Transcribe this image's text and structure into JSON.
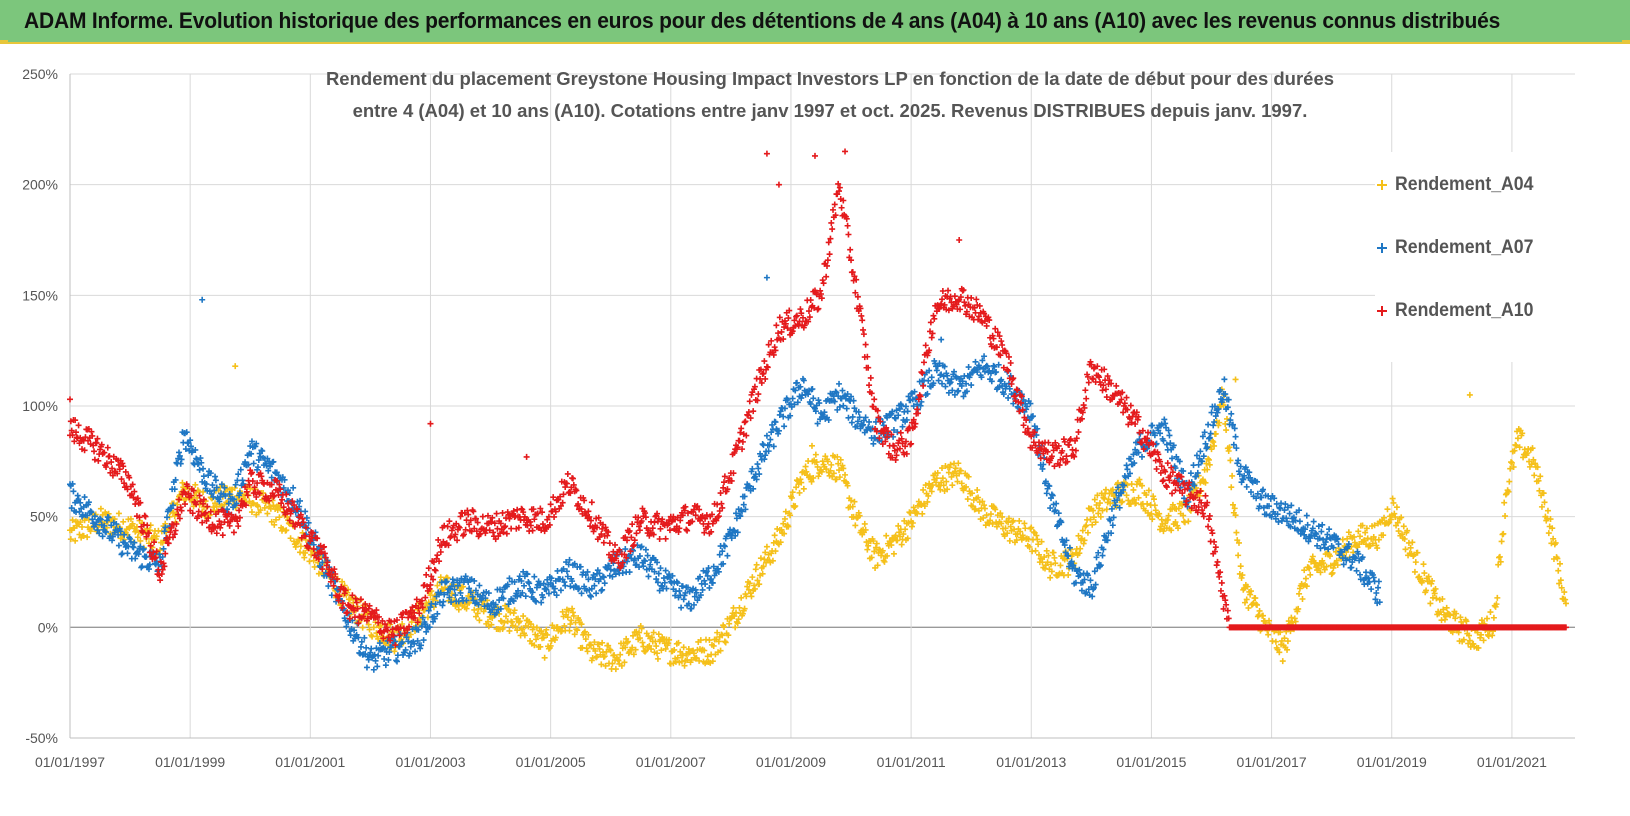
{
  "banner": {
    "title": "ADAM Informe. Evolution historique des performances en euros pour des détentions de 4 ans (A04) à 10 ans (A10) avec les revenus connus distribués"
  },
  "colors": {
    "banner_bg": "#7cc67c",
    "accent": "#e7c63a",
    "a04": "#f5c01a",
    "a07": "#1f77c4",
    "a10": "#e41a1c",
    "grid": "#d9d9d9",
    "zero_line": "#9a9a9a",
    "text": "#555555"
  },
  "chart_data": {
    "type": "scatter",
    "title_line1": "Rendement du placement Greystone Housing Impact Investors LP en fonction de la date de début pour des durées",
    "title_line2": "entre 4 (A04) et 10 ans (A10). Cotations entre janv 1997 et oct. 2025. Revenus DISTRIBUES depuis janv. 1997.",
    "xlabel": "",
    "ylabel": "",
    "x_range": [
      1997.0,
      2022.05
    ],
    "ylim": [
      -50,
      250
    ],
    "y_ticks": [
      -50,
      0,
      50,
      100,
      150,
      200,
      250
    ],
    "y_tick_labels": [
      "-50%",
      "0%",
      "50%",
      "100%",
      "150%",
      "200%",
      "250%"
    ],
    "x_ticks": [
      1997,
      1999,
      2001,
      2003,
      2005,
      2007,
      2009,
      2011,
      2013,
      2015,
      2017,
      2019,
      2021
    ],
    "x_tick_labels": [
      "01/01/1997",
      "01/01/1999",
      "01/01/2001",
      "01/01/2003",
      "01/01/2005",
      "01/01/2007",
      "01/01/2009",
      "01/01/2011",
      "01/01/2013",
      "01/01/2015",
      "01/01/2017",
      "01/01/2019",
      "01/01/2021"
    ],
    "grid": true,
    "legend_position": "top-right",
    "series": [
      {
        "name": "Rendement_A04",
        "color": "#f5c01a",
        "x": [
          1997.0,
          1997.5,
          1998.0,
          1998.5,
          1998.9,
          1999.3,
          1999.7,
          2000.0,
          2000.4,
          2000.8,
          2001.2,
          2001.6,
          2002.0,
          2002.4,
          2002.8,
          2003.2,
          2003.6,
          2004.0,
          2004.5,
          2004.9,
          2005.3,
          2005.7,
          2006.1,
          2006.5,
          2006.9,
          2007.3,
          2007.7,
          2008.0,
          2008.4,
          2008.8,
          2009.2,
          2009.5,
          2009.8,
          2010.1,
          2010.4,
          2010.7,
          2011.0,
          2011.4,
          2011.8,
          2012.2,
          2012.6,
          2013.0,
          2013.3,
          2013.7,
          2014.0,
          2014.4,
          2014.8,
          2015.2,
          2015.6,
          2015.9,
          2016.2,
          2016.5,
          2016.9,
          2017.2,
          2017.6,
          2018.0,
          2018.4,
          2018.8,
          2019.0,
          2019.4,
          2019.8,
          2020.1,
          2020.4,
          2020.7,
          2020.9,
          2021.1,
          2021.35,
          2021.6,
          2021.9
        ],
        "y": [
          42,
          48,
          45,
          38,
          62,
          55,
          60,
          58,
          52,
          40,
          28,
          12,
          2,
          -5,
          5,
          18,
          12,
          6,
          2,
          -8,
          5,
          -12,
          -14,
          -5,
          -10,
          -12,
          -10,
          2,
          22,
          40,
          68,
          75,
          72,
          48,
          32,
          38,
          48,
          66,
          70,
          52,
          45,
          40,
          28,
          30,
          52,
          60,
          62,
          48,
          52,
          70,
          105,
          20,
          0,
          -10,
          25,
          30,
          40,
          42,
          55,
          30,
          8,
          0,
          -5,
          3,
          60,
          85,
          75,
          50,
          10
        ]
      },
      {
        "name": "Rendement_A07",
        "color": "#1f77c4",
        "x": [
          1997.0,
          1997.5,
          1998.0,
          1998.5,
          1998.9,
          1999.3,
          1999.7,
          2000.0,
          2000.4,
          2000.8,
          2001.2,
          2001.6,
          2002.0,
          2002.4,
          2002.8,
          2003.2,
          2003.6,
          2004.0,
          2004.5,
          2004.9,
          2005.3,
          2005.7,
          2006.1,
          2006.5,
          2006.9,
          2007.3,
          2007.7,
          2008.0,
          2008.4,
          2008.8,
          2009.2,
          2009.5,
          2009.8,
          2010.1,
          2010.4,
          2010.7,
          2011.0,
          2011.4,
          2011.8,
          2012.2,
          2012.6,
          2013.0,
          2013.3,
          2013.7,
          2014.0,
          2014.4,
          2014.8,
          2015.2,
          2015.6,
          2015.9,
          2016.2,
          2016.5,
          2016.9,
          2017.2,
          2017.6,
          2018.0,
          2018.4,
          2018.8
        ],
        "y": [
          60,
          48,
          35,
          28,
          88,
          65,
          55,
          80,
          70,
          55,
          30,
          5,
          -15,
          -10,
          -5,
          15,
          18,
          10,
          20,
          15,
          25,
          18,
          28,
          32,
          20,
          12,
          25,
          40,
          70,
          92,
          110,
          95,
          105,
          95,
          88,
          92,
          100,
          115,
          108,
          118,
          110,
          98,
          60,
          25,
          18,
          55,
          82,
          90,
          60,
          85,
          108,
          70,
          55,
          52,
          45,
          38,
          30,
          15
        ]
      },
      {
        "name": "Rendement_A10",
        "color": "#e41a1c",
        "x": [
          1997.0,
          1997.5,
          1998.0,
          1998.5,
          1998.9,
          1999.3,
          1999.7,
          2000.0,
          2000.4,
          2000.8,
          2001.2,
          2001.6,
          2002.0,
          2002.4,
          2002.8,
          2003.2,
          2003.6,
          2004.0,
          2004.5,
          2004.9,
          2005.3,
          2005.7,
          2006.1,
          2006.5,
          2006.9,
          2007.3,
          2007.7,
          2008.0,
          2008.4,
          2008.8,
          2009.2,
          2009.5,
          2009.8,
          2010.1,
          2010.4,
          2010.7,
          2011.0,
          2011.4,
          2011.8,
          2012.2,
          2012.6,
          2013.0,
          2013.3,
          2013.7,
          2014.0,
          2014.4,
          2014.8,
          2015.2,
          2015.6,
          2015.9,
          2016.3,
          2016.8,
          2017.3,
          2017.8,
          2018.3,
          2018.8,
          2019.3,
          2019.8,
          2020.3,
          2020.8,
          2021.3,
          2021.9
        ],
        "y": [
          90,
          80,
          65,
          25,
          60,
          50,
          45,
          65,
          62,
          48,
          32,
          10,
          5,
          -3,
          8,
          40,
          48,
          45,
          50,
          48,
          65,
          50,
          30,
          48,
          45,
          50,
          48,
          70,
          105,
          135,
          140,
          150,
          200,
          150,
          95,
          80,
          85,
          145,
          150,
          140,
          120,
          85,
          78,
          80,
          118,
          105,
          90,
          70,
          60,
          55,
          0,
          0,
          0,
          0,
          0,
          0,
          0,
          0,
          0,
          0,
          0,
          0
        ]
      }
    ]
  }
}
